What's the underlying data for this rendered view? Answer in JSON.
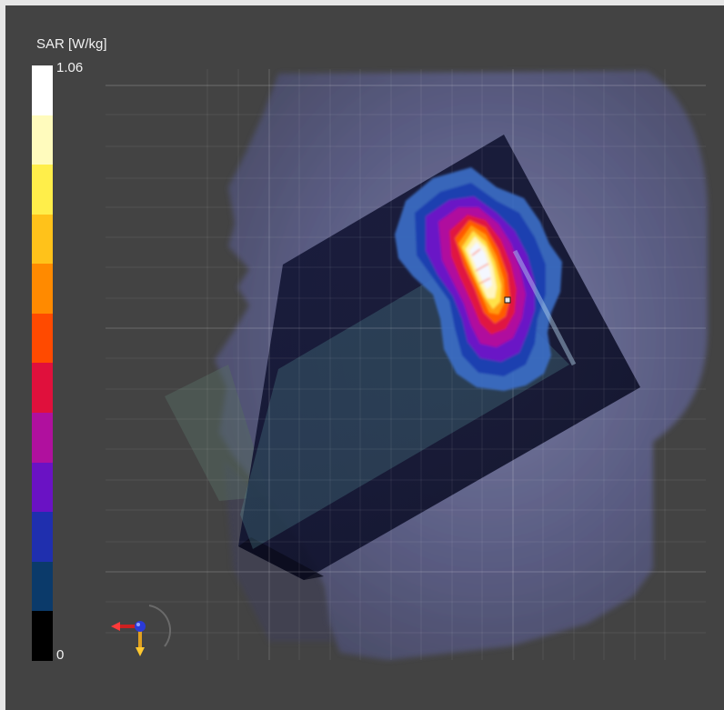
{
  "legend": {
    "title": "SAR [W/kg]",
    "max_label": "1.06",
    "min_label": "0",
    "colors_top_to_bottom": [
      "#ffffff",
      "#fffbbd",
      "#ffee4a",
      "#ffc21a",
      "#ff8a00",
      "#ff4a00",
      "#e0103c",
      "#b0109e",
      "#6a12c4",
      "#1f2fae",
      "#0b3a6a",
      "#000000"
    ]
  },
  "scene": {
    "background": "#434343",
    "head_model_color": "#6c6f9b",
    "sar_hotspot": {
      "peak_color": "#ffffff",
      "outer_color": "#3b6ec8"
    }
  },
  "view_controls": {
    "orientation_widget": "axis-triad-icon"
  }
}
